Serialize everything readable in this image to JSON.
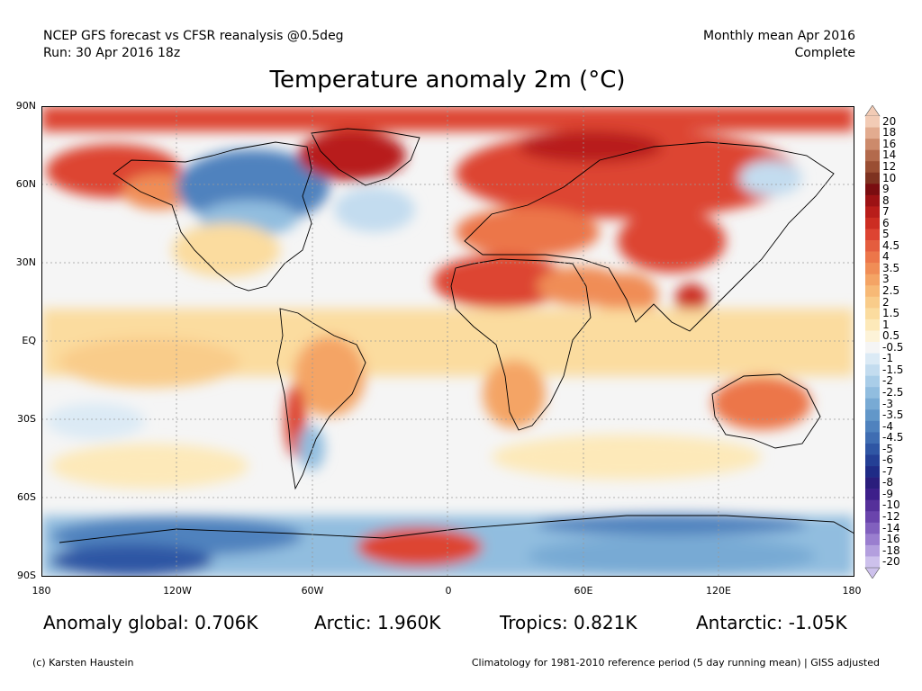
{
  "header": {
    "line1_left": "NCEP GFS forecast vs CFSR reanalysis @0.5deg",
    "line2_left": "Run: 30 Apr 2016 18z",
    "line1_right": "Monthly mean Apr 2016",
    "line2_right": "Complete"
  },
  "title": "Temperature anomaly 2m (°C)",
  "lat_labels": [
    "90N",
    "60N",
    "30N",
    "EQ",
    "30S",
    "60S",
    "90S"
  ],
  "lon_labels": [
    "180",
    "120W",
    "60W",
    "0",
    "60E",
    "120E",
    "180"
  ],
  "colorbar": {
    "labels": [
      "20",
      "18",
      "16",
      "14",
      "12",
      "10",
      "9",
      "8",
      "7",
      "6",
      "5",
      "4.5",
      "4",
      "3.5",
      "3",
      "2.5",
      "2",
      "1.5",
      "1",
      "0.5",
      "-0.5",
      "-1",
      "-1.5",
      "-2",
      "-2.5",
      "-3",
      "-3.5",
      "-4",
      "-4.5",
      "-5",
      "-6",
      "-7",
      "-8",
      "-9",
      "-10",
      "-12",
      "-14",
      "-16",
      "-18",
      "-20"
    ],
    "colors": [
      "#f2cbb5",
      "#e2ab8f",
      "#cc8a6b",
      "#b36a4c",
      "#9a4e33",
      "#7e3220",
      "#7a0d10",
      "#9c1214",
      "#b81d1a",
      "#cc2d22",
      "#dd4432",
      "#e45d3e",
      "#ec764a",
      "#f08d56",
      "#f4a465",
      "#f7b976",
      "#f9cc8a",
      "#fbdc9f",
      "#fde9b9",
      "#fdf3d8",
      "#f5f5f5",
      "#dbeaf5",
      "#c3dcef",
      "#a9cde8",
      "#91bddf",
      "#78aad4",
      "#6297c9",
      "#4f82be",
      "#3f6db2",
      "#2f56a4",
      "#243f95",
      "#1f2b86",
      "#2a1d7c",
      "#3d1f8a",
      "#55309a",
      "#6a44ac",
      "#8160be",
      "#9a7ecf",
      "#b39fde",
      "#cdc1ec"
    ]
  },
  "stats": {
    "global": "Anomaly global: 0.706K",
    "arctic": "Arctic: 1.960K",
    "tropics": "Tropics: 0.821K",
    "antarctic": "Antarctic: -1.05K"
  },
  "footer": {
    "left": "(c) Karsten Haustein",
    "right": "Climatology for 1981-2010 reference period (5 day running mean) | GISS adjusted"
  }
}
